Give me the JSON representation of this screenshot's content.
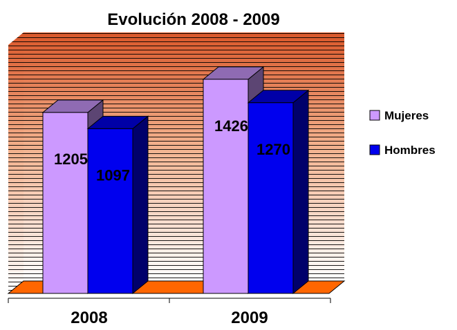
{
  "chart_data": {
    "type": "bar",
    "title": "Evolución 2008 - 2009",
    "categories": [
      "2008",
      "2009"
    ],
    "series": [
      {
        "name": "Mujeres",
        "values": [
          1205,
          1426
        ],
        "color": "#cc99ff"
      },
      {
        "name": "Hombres",
        "values": [
          1097,
          1270
        ],
        "color": "#0000ee"
      }
    ],
    "ylim": [
      0,
      1600
    ],
    "xlabel": "",
    "ylabel": "",
    "legend_position": "right",
    "three_d": true,
    "background_colors": {
      "top": "#d9572a",
      "bottom": "#ffffff",
      "floor": "#ff6600"
    }
  }
}
